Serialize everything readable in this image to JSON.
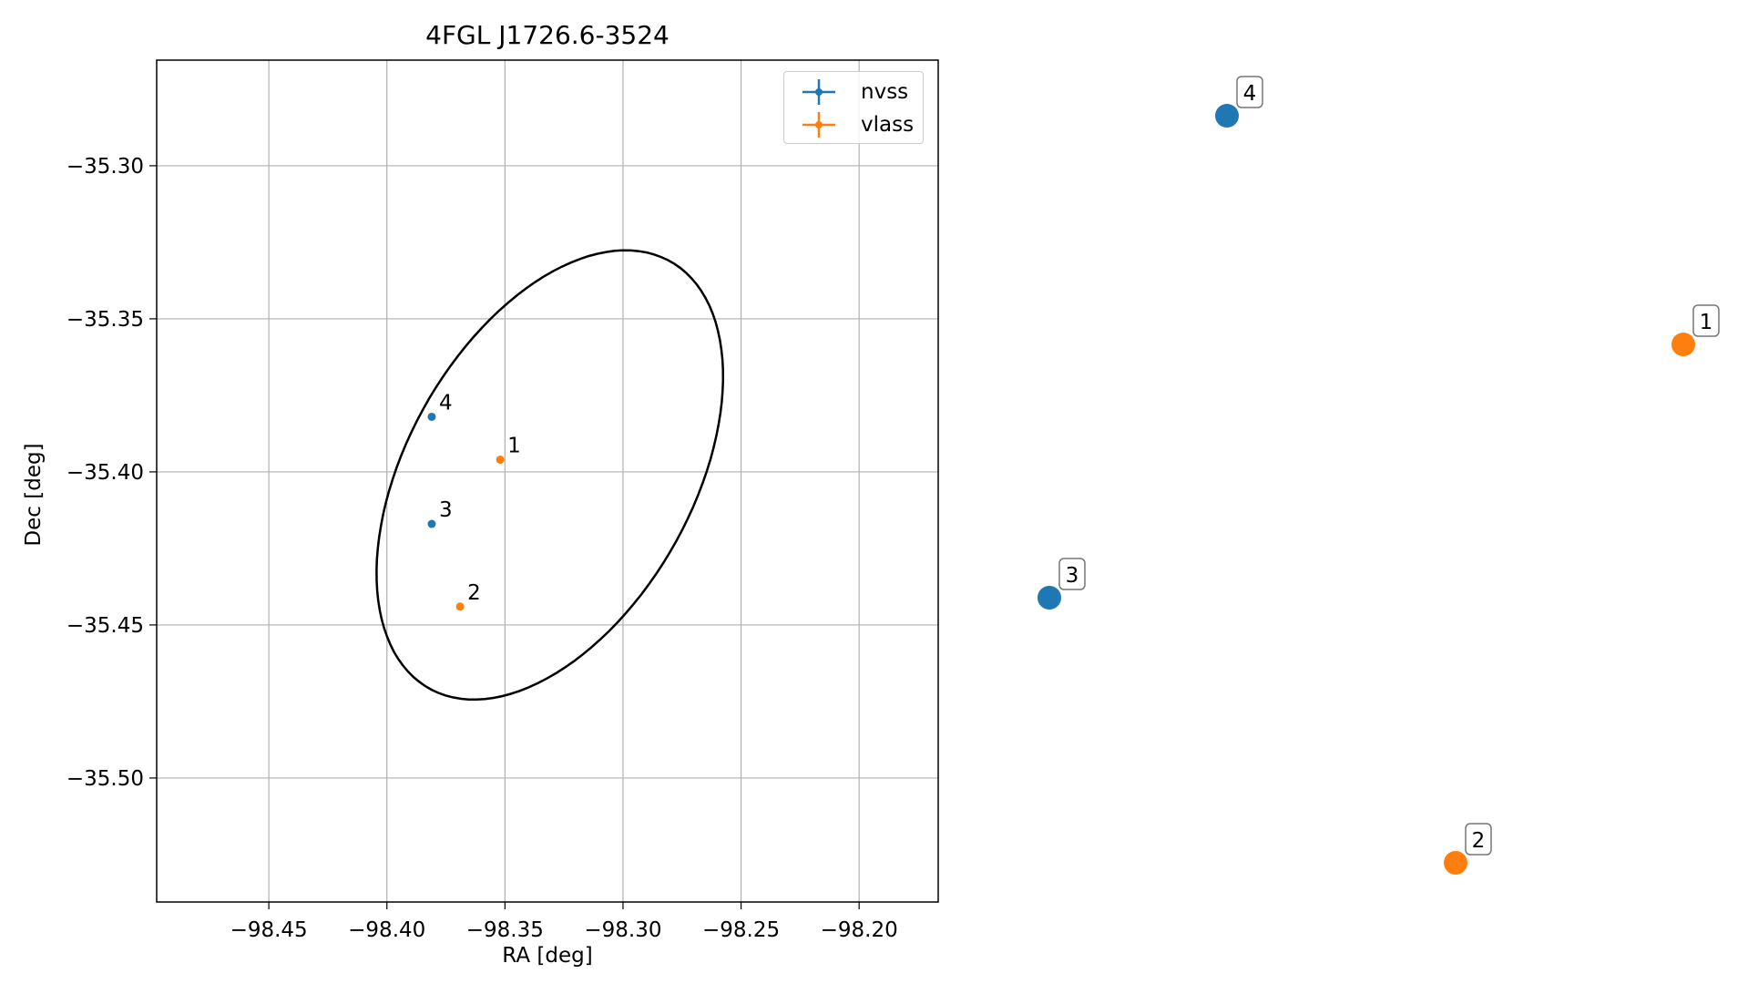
{
  "colors": {
    "nvss": "#1f77b4",
    "vlass": "#ff7f0e",
    "ellipse": "#000000",
    "grid": "#b0b0b0"
  },
  "chart_data": {
    "type": "scatter",
    "title": "4FGL J1726.6-3524",
    "xlabel": "RA [deg]",
    "ylabel": "Dec [deg]",
    "xlim": [
      -98.4975,
      -98.1665
    ],
    "ylim": [
      -35.5405,
      -35.2655
    ],
    "grid": true,
    "legend_position": "top-right",
    "x_ticks": [
      -98.45,
      -98.4,
      -98.35,
      -98.3,
      -98.25,
      -98.2
    ],
    "x_tick_labels": [
      "−98.45",
      "−98.40",
      "−98.35",
      "−98.30",
      "−98.25",
      "−98.20"
    ],
    "y_ticks": [
      -35.3,
      -35.35,
      -35.4,
      -35.45,
      -35.5
    ],
    "y_tick_labels": [
      "−35.30",
      "−35.35",
      "−35.40",
      "−35.45",
      "−35.50"
    ],
    "ellipse": {
      "center_ra": -98.331,
      "center_dec": -35.401,
      "semi_major_deg": 0.088,
      "semi_minor_deg": 0.055,
      "angle_deg": 45
    },
    "series": [
      {
        "name": "nvss",
        "points": [
          {
            "id": "4",
            "ra": -98.381,
            "dec": -35.382
          },
          {
            "id": "3",
            "ra": -98.381,
            "dec": -35.417
          }
        ]
      },
      {
        "name": "vlass",
        "points": [
          {
            "id": "1",
            "ra": -98.352,
            "dec": -35.396
          },
          {
            "id": "2",
            "ra": -98.369,
            "dec": -35.444
          }
        ]
      }
    ],
    "zoom_points": [
      {
        "id": "4",
        "series": "nvss"
      },
      {
        "id": "1",
        "series": "vlass"
      },
      {
        "id": "3",
        "series": "nvss"
      },
      {
        "id": "2",
        "series": "vlass"
      }
    ]
  }
}
